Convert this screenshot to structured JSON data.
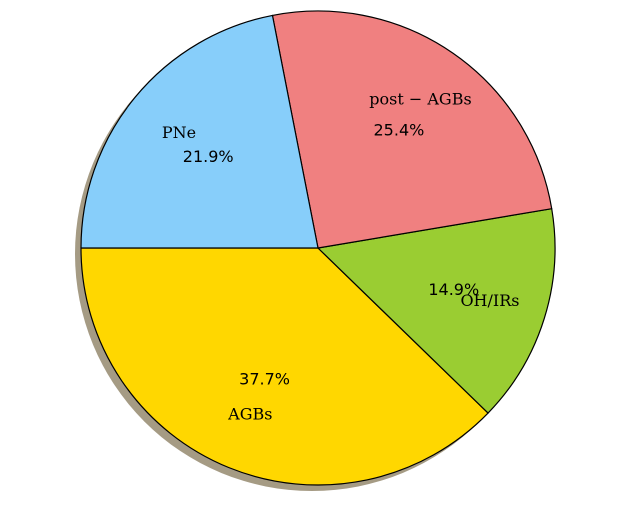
{
  "chart_data": {
    "type": "pie",
    "categories": [
      "AGBs",
      "OH/IRs",
      "post − AGBs",
      "PNe"
    ],
    "values": [
      37.7,
      14.9,
      25.4,
      21.9
    ],
    "value_labels": [
      "37.7%",
      "14.9%",
      "25.4%",
      "21.9%"
    ],
    "colors": [
      "#ffd700",
      "#9acd32",
      "#f08080",
      "#87cefa"
    ],
    "start_angle": 180,
    "shadow": true
  }
}
